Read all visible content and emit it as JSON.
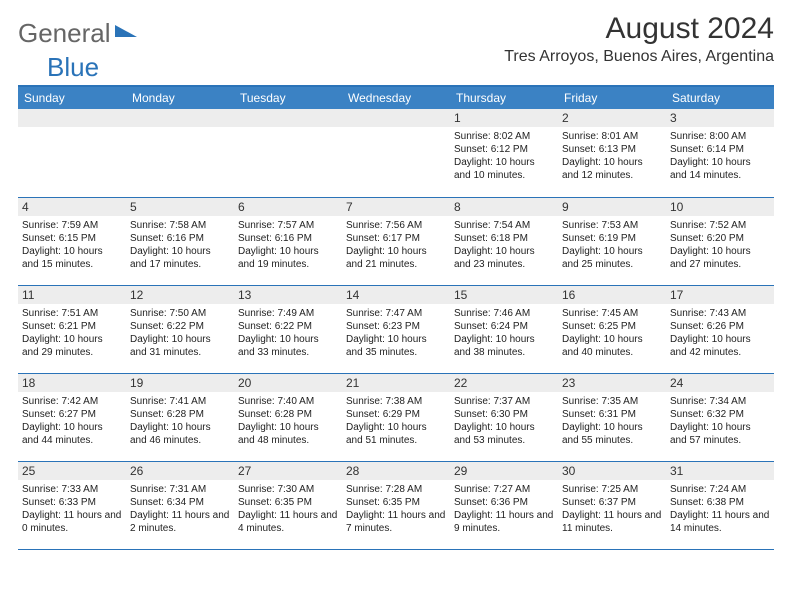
{
  "brand": {
    "part1": "General",
    "part2": "Blue"
  },
  "title": "August 2024",
  "location": "Tres Arroyos, Buenos Aires, Argentina",
  "colors": {
    "header_bg": "#3b82c4",
    "row_divider": "#2a73b8",
    "daynum_bg": "#ededed",
    "text": "#222222",
    "background": "#ffffff"
  },
  "typography": {
    "base_font": "Arial",
    "title_size_pt": 22,
    "location_size_pt": 12,
    "cell_size_pt": 7.5
  },
  "columns": [
    "Sunday",
    "Monday",
    "Tuesday",
    "Wednesday",
    "Thursday",
    "Friday",
    "Saturday"
  ],
  "weeks": [
    [
      {
        "n": "",
        "sunrise": "",
        "sunset": "",
        "daylight": ""
      },
      {
        "n": "",
        "sunrise": "",
        "sunset": "",
        "daylight": ""
      },
      {
        "n": "",
        "sunrise": "",
        "sunset": "",
        "daylight": ""
      },
      {
        "n": "",
        "sunrise": "",
        "sunset": "",
        "daylight": ""
      },
      {
        "n": "1",
        "sunrise": "Sunrise: 8:02 AM",
        "sunset": "Sunset: 6:12 PM",
        "daylight": "Daylight: 10 hours and 10 minutes."
      },
      {
        "n": "2",
        "sunrise": "Sunrise: 8:01 AM",
        "sunset": "Sunset: 6:13 PM",
        "daylight": "Daylight: 10 hours and 12 minutes."
      },
      {
        "n": "3",
        "sunrise": "Sunrise: 8:00 AM",
        "sunset": "Sunset: 6:14 PM",
        "daylight": "Daylight: 10 hours and 14 minutes."
      }
    ],
    [
      {
        "n": "4",
        "sunrise": "Sunrise: 7:59 AM",
        "sunset": "Sunset: 6:15 PM",
        "daylight": "Daylight: 10 hours and 15 minutes."
      },
      {
        "n": "5",
        "sunrise": "Sunrise: 7:58 AM",
        "sunset": "Sunset: 6:16 PM",
        "daylight": "Daylight: 10 hours and 17 minutes."
      },
      {
        "n": "6",
        "sunrise": "Sunrise: 7:57 AM",
        "sunset": "Sunset: 6:16 PM",
        "daylight": "Daylight: 10 hours and 19 minutes."
      },
      {
        "n": "7",
        "sunrise": "Sunrise: 7:56 AM",
        "sunset": "Sunset: 6:17 PM",
        "daylight": "Daylight: 10 hours and 21 minutes."
      },
      {
        "n": "8",
        "sunrise": "Sunrise: 7:54 AM",
        "sunset": "Sunset: 6:18 PM",
        "daylight": "Daylight: 10 hours and 23 minutes."
      },
      {
        "n": "9",
        "sunrise": "Sunrise: 7:53 AM",
        "sunset": "Sunset: 6:19 PM",
        "daylight": "Daylight: 10 hours and 25 minutes."
      },
      {
        "n": "10",
        "sunrise": "Sunrise: 7:52 AM",
        "sunset": "Sunset: 6:20 PM",
        "daylight": "Daylight: 10 hours and 27 minutes."
      }
    ],
    [
      {
        "n": "11",
        "sunrise": "Sunrise: 7:51 AM",
        "sunset": "Sunset: 6:21 PM",
        "daylight": "Daylight: 10 hours and 29 minutes."
      },
      {
        "n": "12",
        "sunrise": "Sunrise: 7:50 AM",
        "sunset": "Sunset: 6:22 PM",
        "daylight": "Daylight: 10 hours and 31 minutes."
      },
      {
        "n": "13",
        "sunrise": "Sunrise: 7:49 AM",
        "sunset": "Sunset: 6:22 PM",
        "daylight": "Daylight: 10 hours and 33 minutes."
      },
      {
        "n": "14",
        "sunrise": "Sunrise: 7:47 AM",
        "sunset": "Sunset: 6:23 PM",
        "daylight": "Daylight: 10 hours and 35 minutes."
      },
      {
        "n": "15",
        "sunrise": "Sunrise: 7:46 AM",
        "sunset": "Sunset: 6:24 PM",
        "daylight": "Daylight: 10 hours and 38 minutes."
      },
      {
        "n": "16",
        "sunrise": "Sunrise: 7:45 AM",
        "sunset": "Sunset: 6:25 PM",
        "daylight": "Daylight: 10 hours and 40 minutes."
      },
      {
        "n": "17",
        "sunrise": "Sunrise: 7:43 AM",
        "sunset": "Sunset: 6:26 PM",
        "daylight": "Daylight: 10 hours and 42 minutes."
      }
    ],
    [
      {
        "n": "18",
        "sunrise": "Sunrise: 7:42 AM",
        "sunset": "Sunset: 6:27 PM",
        "daylight": "Daylight: 10 hours and 44 minutes."
      },
      {
        "n": "19",
        "sunrise": "Sunrise: 7:41 AM",
        "sunset": "Sunset: 6:28 PM",
        "daylight": "Daylight: 10 hours and 46 minutes."
      },
      {
        "n": "20",
        "sunrise": "Sunrise: 7:40 AM",
        "sunset": "Sunset: 6:28 PM",
        "daylight": "Daylight: 10 hours and 48 minutes."
      },
      {
        "n": "21",
        "sunrise": "Sunrise: 7:38 AM",
        "sunset": "Sunset: 6:29 PM",
        "daylight": "Daylight: 10 hours and 51 minutes."
      },
      {
        "n": "22",
        "sunrise": "Sunrise: 7:37 AM",
        "sunset": "Sunset: 6:30 PM",
        "daylight": "Daylight: 10 hours and 53 minutes."
      },
      {
        "n": "23",
        "sunrise": "Sunrise: 7:35 AM",
        "sunset": "Sunset: 6:31 PM",
        "daylight": "Daylight: 10 hours and 55 minutes."
      },
      {
        "n": "24",
        "sunrise": "Sunrise: 7:34 AM",
        "sunset": "Sunset: 6:32 PM",
        "daylight": "Daylight: 10 hours and 57 minutes."
      }
    ],
    [
      {
        "n": "25",
        "sunrise": "Sunrise: 7:33 AM",
        "sunset": "Sunset: 6:33 PM",
        "daylight": "Daylight: 11 hours and 0 minutes."
      },
      {
        "n": "26",
        "sunrise": "Sunrise: 7:31 AM",
        "sunset": "Sunset: 6:34 PM",
        "daylight": "Daylight: 11 hours and 2 minutes."
      },
      {
        "n": "27",
        "sunrise": "Sunrise: 7:30 AM",
        "sunset": "Sunset: 6:35 PM",
        "daylight": "Daylight: 11 hours and 4 minutes."
      },
      {
        "n": "28",
        "sunrise": "Sunrise: 7:28 AM",
        "sunset": "Sunset: 6:35 PM",
        "daylight": "Daylight: 11 hours and 7 minutes."
      },
      {
        "n": "29",
        "sunrise": "Sunrise: 7:27 AM",
        "sunset": "Sunset: 6:36 PM",
        "daylight": "Daylight: 11 hours and 9 minutes."
      },
      {
        "n": "30",
        "sunrise": "Sunrise: 7:25 AM",
        "sunset": "Sunset: 6:37 PM",
        "daylight": "Daylight: 11 hours and 11 minutes."
      },
      {
        "n": "31",
        "sunrise": "Sunrise: 7:24 AM",
        "sunset": "Sunset: 6:38 PM",
        "daylight": "Daylight: 11 hours and 14 minutes."
      }
    ]
  ]
}
